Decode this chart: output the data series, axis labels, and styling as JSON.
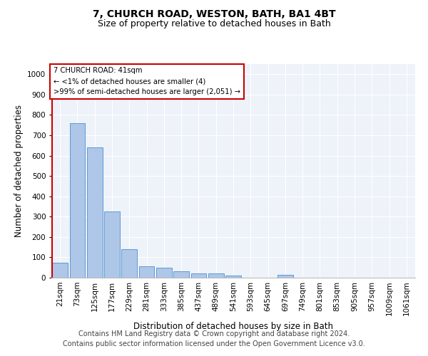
{
  "title": "7, CHURCH ROAD, WESTON, BATH, BA1 4BT",
  "subtitle": "Size of property relative to detached houses in Bath",
  "xlabel": "Distribution of detached houses by size in Bath",
  "ylabel": "Number of detached properties",
  "footer_line1": "Contains HM Land Registry data © Crown copyright and database right 2024.",
  "footer_line2": "Contains public sector information licensed under the Open Government Licence v3.0.",
  "annotation_line1": "7 CHURCH ROAD: 41sqm",
  "annotation_line2": "← <1% of detached houses are smaller (4)",
  "annotation_line3": ">99% of semi-detached houses are larger (2,051) →",
  "bar_labels": [
    "21sqm",
    "73sqm",
    "125sqm",
    "177sqm",
    "229sqm",
    "281sqm",
    "333sqm",
    "385sqm",
    "437sqm",
    "489sqm",
    "541sqm",
    "593sqm",
    "645sqm",
    "697sqm",
    "749sqm",
    "801sqm",
    "853sqm",
    "905sqm",
    "957sqm",
    "1009sqm",
    "1061sqm"
  ],
  "bar_values": [
    75,
    760,
    640,
    325,
    140,
    55,
    50,
    30,
    20,
    20,
    10,
    0,
    0,
    15,
    0,
    0,
    0,
    0,
    0,
    0,
    0
  ],
  "bar_color": "#aec6e8",
  "bar_edge_color": "#5b9bd5",
  "highlight_color": "#cc0000",
  "ylim": [
    0,
    1050
  ],
  "yticks": [
    0,
    100,
    200,
    300,
    400,
    500,
    600,
    700,
    800,
    900,
    1000
  ],
  "bg_color": "#eef2f9",
  "annotation_box_color": "#cc0000",
  "title_fontsize": 10,
  "subtitle_fontsize": 9,
  "axis_label_fontsize": 8.5,
  "tick_fontsize": 7.5,
  "footer_fontsize": 7
}
